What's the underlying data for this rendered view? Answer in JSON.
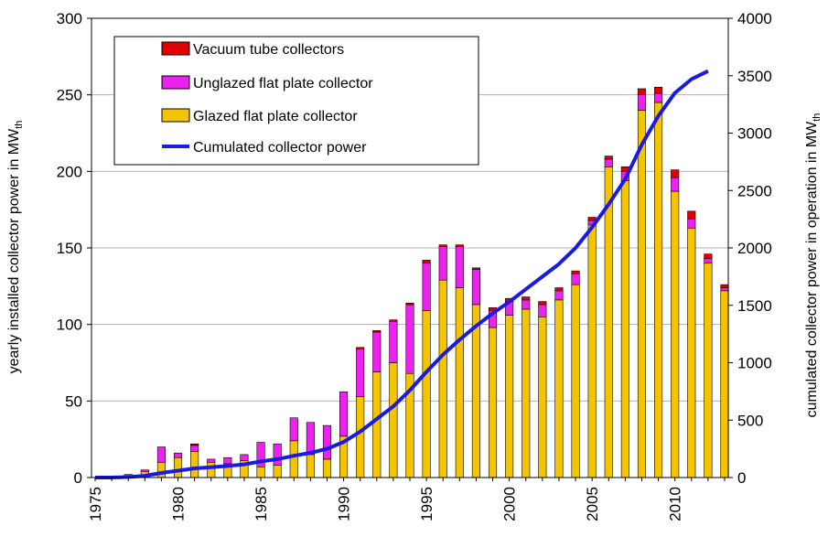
{
  "chart_data": {
    "type": "bar",
    "stacked": true,
    "x": [
      1975,
      1976,
      1977,
      1978,
      1979,
      1980,
      1981,
      1982,
      1983,
      1984,
      1985,
      1986,
      1987,
      1988,
      1989,
      1990,
      1991,
      1992,
      1993,
      1994,
      1995,
      1996,
      1997,
      1998,
      1999,
      2000,
      2001,
      2002,
      2003,
      2004,
      2005,
      2006,
      2007,
      2008,
      2009,
      2010,
      2011,
      2012,
      2013
    ],
    "x_tick_labels": [
      "1975",
      "1980",
      "1985",
      "1990",
      "1995",
      "2000",
      "2005",
      "2010"
    ],
    "series": [
      {
        "name": "Glazed flat plate collector",
        "color": "#F5C400",
        "axis": "left",
        "values": [
          0,
          0,
          1,
          4,
          10,
          13,
          17,
          10,
          9,
          11,
          7,
          8,
          24,
          15,
          12,
          27,
          53,
          69,
          75,
          68,
          109,
          129,
          124,
          113,
          98,
          106,
          110,
          105,
          116,
          126,
          165,
          203,
          194,
          240,
          245,
          187,
          163,
          140,
          122
        ]
      },
      {
        "name": "Unglazed flat plate collector",
        "color": "#EE22EE",
        "axis": "left",
        "values": [
          0,
          0,
          1,
          1,
          10,
          3,
          4,
          2,
          4,
          4,
          16,
          14,
          15,
          21,
          22,
          29,
          31,
          26,
          27,
          45,
          31,
          22,
          27,
          23,
          11,
          9,
          6,
          8,
          6,
          7,
          3,
          5,
          6,
          10,
          6,
          9,
          6,
          3,
          2
        ]
      },
      {
        "name": "Vacuum tube collectors",
        "color": "#E00000",
        "axis": "left",
        "values": [
          0,
          0,
          0,
          0,
          0,
          0,
          1,
          0,
          0,
          0,
          0,
          0,
          0,
          0,
          0,
          0,
          1,
          1,
          1,
          1,
          2,
          1,
          1,
          1,
          2,
          2,
          2,
          2,
          2,
          2,
          2,
          2,
          3,
          4,
          4,
          5,
          5,
          3,
          2
        ]
      },
      {
        "name": "Cumulated collector power",
        "color": "#1A1AE6",
        "axis": "right",
        "type": "line",
        "x": [
          1975,
          1976,
          1977,
          1978,
          1979,
          1980,
          1981,
          1982,
          1983,
          1984,
          1985,
          1986,
          1987,
          1988,
          1989,
          1990,
          1991,
          1992,
          1993,
          1994,
          1995,
          1996,
          1997,
          1998,
          1999,
          2000,
          2001,
          2002,
          2003,
          2004,
          2005,
          2006,
          2007,
          2008,
          2009,
          2010,
          2011,
          2012
        ],
        "values": [
          0,
          0,
          5,
          15,
          40,
          60,
          80,
          90,
          100,
          115,
          140,
          160,
          190,
          215,
          250,
          310,
          400,
          510,
          620,
          760,
          920,
          1070,
          1200,
          1320,
          1430,
          1530,
          1640,
          1750,
          1860,
          2000,
          2180,
          2380,
          2600,
          2900,
          3150,
          3350,
          3470,
          3540
        ]
      }
    ],
    "legend_order": [
      "Vacuum tube collectors",
      "Unglazed flat plate collector",
      "Glazed flat plate collector",
      "Cumulated collector power"
    ],
    "legend_position": "top-left",
    "xlabel": "",
    "ylabel_left": "yearly installed collector power in MW",
    "ylabel_left_sub": "th",
    "ylabel_right": "cumulated collector power in operation in MW",
    "ylabel_right_sub": "th",
    "ylim_left": [
      0,
      300
    ],
    "ylim_right": [
      0,
      4000
    ],
    "yticks_left": [
      0,
      50,
      100,
      150,
      200,
      250,
      300
    ],
    "yticks_right": [
      0,
      500,
      1000,
      1500,
      2000,
      2500,
      3000,
      3500,
      4000
    ],
    "grid": "horizontal"
  }
}
